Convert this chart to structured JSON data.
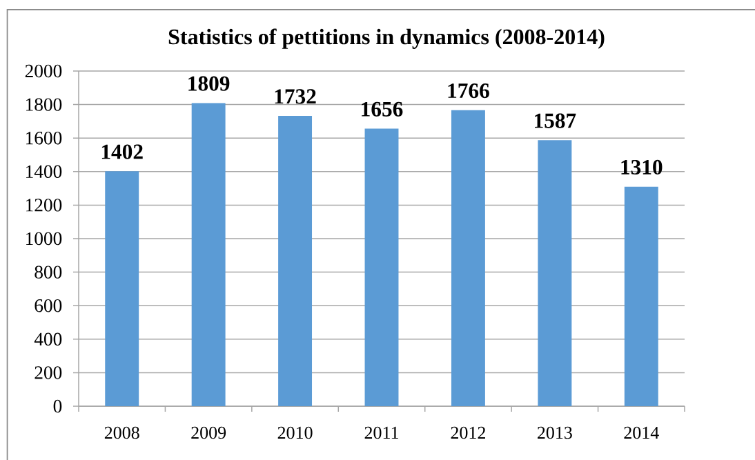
{
  "chart_data": {
    "type": "bar",
    "title": "Statistics of pettitions in dynamics (2008-2014)",
    "categories": [
      "2008",
      "2009",
      "2010",
      "2011",
      "2012",
      "2013",
      "2014"
    ],
    "values": [
      1402,
      1809,
      1732,
      1656,
      1766,
      1587,
      1310
    ],
    "color": "#5b9bd5",
    "ylim": [
      0,
      2000
    ],
    "yticks": [
      0,
      200,
      400,
      600,
      800,
      1000,
      1200,
      1400,
      1600,
      1800,
      2000
    ],
    "grid": "y",
    "data_labels": true
  }
}
